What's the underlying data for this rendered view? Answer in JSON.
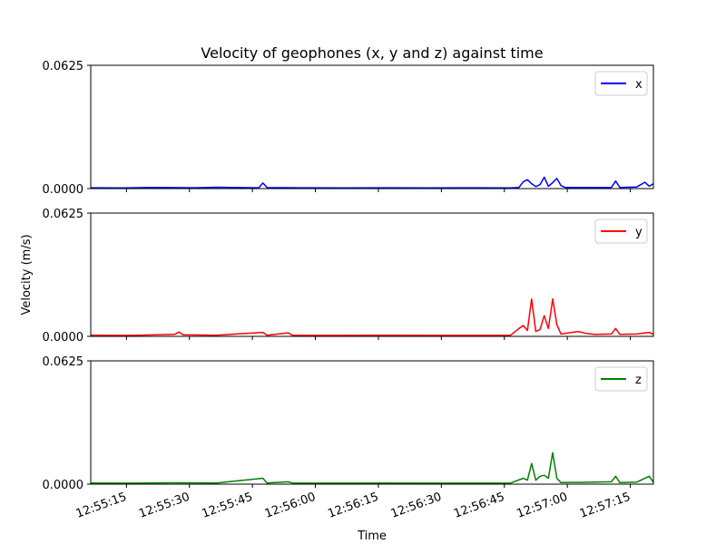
{
  "chart_data": {
    "type": "line",
    "title": "Velocity of geophones (x, y and z) against time",
    "xlabel": "Time",
    "ylabel": "Velocity (m/s)",
    "x_ticks": [
      "12:55:15",
      "12:55:30",
      "12:55:45",
      "12:56:00",
      "12:56:15",
      "12:56:30",
      "12:56:45",
      "12:57:00",
      "12:57:15"
    ],
    "y_ticks": [
      "0.0000",
      "0.0625"
    ],
    "ylim": [
      0,
      0.0625
    ],
    "x_range_seconds": [
      0,
      134
    ],
    "legend_position": "top-right",
    "grid": false,
    "series": [
      {
        "name": "x",
        "color": "#0000ff",
        "points": [
          [
            0,
            0.0004
          ],
          [
            8,
            0.0003
          ],
          [
            15,
            0.0006
          ],
          [
            25,
            0.0004
          ],
          [
            30,
            0.0007
          ],
          [
            35,
            0.0005
          ],
          [
            40,
            0.0004
          ],
          [
            41,
            0.0028
          ],
          [
            42,
            0.0005
          ],
          [
            50,
            0.0004
          ],
          [
            60,
            0.0003
          ],
          [
            70,
            0.0004
          ],
          [
            80,
            0.0003
          ],
          [
            90,
            0.0004
          ],
          [
            100,
            0.0003
          ],
          [
            102,
            0.0006
          ],
          [
            103,
            0.0035
          ],
          [
            104,
            0.0045
          ],
          [
            105,
            0.0025
          ],
          [
            106,
            0.001
          ],
          [
            107,
            0.002
          ],
          [
            108,
            0.0058
          ],
          [
            109,
            0.0012
          ],
          [
            110,
            0.003
          ],
          [
            111,
            0.0052
          ],
          [
            112,
            0.0015
          ],
          [
            113,
            0.0006
          ],
          [
            120,
            0.0005
          ],
          [
            124,
            0.0006
          ],
          [
            125,
            0.0038
          ],
          [
            126,
            0.0006
          ],
          [
            130,
            0.0008
          ],
          [
            132,
            0.0032
          ],
          [
            133,
            0.0012
          ],
          [
            134,
            0.0025
          ]
        ]
      },
      {
        "name": "y",
        "color": "#ff0000",
        "points": [
          [
            0,
            0.0006
          ],
          [
            10,
            0.0005
          ],
          [
            20,
            0.001
          ],
          [
            21,
            0.0022
          ],
          [
            22,
            0.0008
          ],
          [
            30,
            0.0006
          ],
          [
            41,
            0.002
          ],
          [
            42,
            0.0006
          ],
          [
            47,
            0.0018
          ],
          [
            48,
            0.0006
          ],
          [
            60,
            0.0005
          ],
          [
            70,
            0.0006
          ],
          [
            80,
            0.0005
          ],
          [
            90,
            0.0005
          ],
          [
            100,
            0.0006
          ],
          [
            102,
            0.004
          ],
          [
            103,
            0.0055
          ],
          [
            104,
            0.003
          ],
          [
            105,
            0.019
          ],
          [
            106,
            0.0025
          ],
          [
            107,
            0.0035
          ],
          [
            108,
            0.0105
          ],
          [
            109,
            0.004
          ],
          [
            110,
            0.019
          ],
          [
            111,
            0.006
          ],
          [
            112,
            0.0012
          ],
          [
            116,
            0.0025
          ],
          [
            118,
            0.0015
          ],
          [
            120,
            0.001
          ],
          [
            124,
            0.0012
          ],
          [
            125,
            0.004
          ],
          [
            126,
            0.001
          ],
          [
            130,
            0.0012
          ],
          [
            133,
            0.002
          ],
          [
            134,
            0.001
          ]
        ]
      },
      {
        "name": "z",
        "color": "#008000",
        "points": [
          [
            0,
            0.0006
          ],
          [
            10,
            0.0005
          ],
          [
            20,
            0.0007
          ],
          [
            30,
            0.0006
          ],
          [
            41,
            0.003
          ],
          [
            42,
            0.0006
          ],
          [
            47,
            0.0012
          ],
          [
            48,
            0.0006
          ],
          [
            60,
            0.0005
          ],
          [
            70,
            0.0006
          ],
          [
            80,
            0.0005
          ],
          [
            90,
            0.0005
          ],
          [
            100,
            0.0006
          ],
          [
            103,
            0.003
          ],
          [
            104,
            0.002
          ],
          [
            105,
            0.0105
          ],
          [
            106,
            0.002
          ],
          [
            107,
            0.004
          ],
          [
            108,
            0.0045
          ],
          [
            109,
            0.003
          ],
          [
            110,
            0.016
          ],
          [
            111,
            0.003
          ],
          [
            112,
            0.0008
          ],
          [
            120,
            0.001
          ],
          [
            124,
            0.0012
          ],
          [
            125,
            0.004
          ],
          [
            126,
            0.0008
          ],
          [
            130,
            0.001
          ],
          [
            133,
            0.004
          ],
          [
            134,
            0.001
          ]
        ]
      }
    ]
  }
}
